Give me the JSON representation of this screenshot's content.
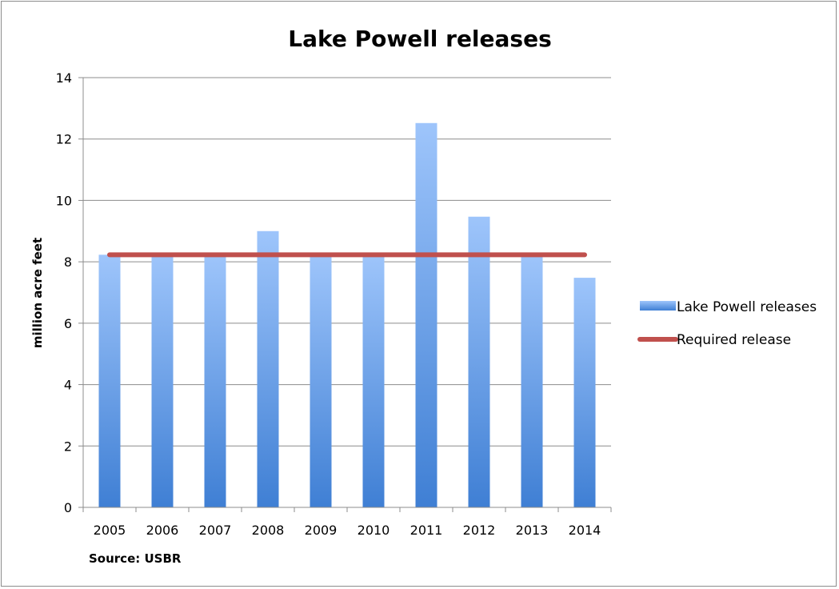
{
  "chart_data": {
    "type": "bar",
    "title": "Lake Powell releases",
    "xlabel": "",
    "ylabel": "million acre feet",
    "categories": [
      "2005",
      "2006",
      "2007",
      "2008",
      "2009",
      "2010",
      "2011",
      "2012",
      "2013",
      "2014"
    ],
    "series": [
      {
        "name": "Lake Powell releases",
        "kind": "bar",
        "values": [
          8.23,
          8.23,
          8.23,
          9.0,
          8.23,
          8.23,
          12.52,
          9.47,
          8.23,
          7.48
        ],
        "color_top": "#9ec5fb",
        "color_bottom": "#3f7fd4"
      },
      {
        "name": "Required release",
        "kind": "line",
        "values": [
          8.23,
          8.23,
          8.23,
          8.23,
          8.23,
          8.23,
          8.23,
          8.23,
          8.23,
          8.23
        ],
        "color": "#c0504d"
      }
    ],
    "ylim": [
      0,
      14
    ],
    "yticks": [
      "0",
      "2",
      "4",
      "6",
      "8",
      "10",
      "12",
      "14"
    ],
    "grid": true,
    "legend_position": "right",
    "source": "Source: USBR"
  }
}
